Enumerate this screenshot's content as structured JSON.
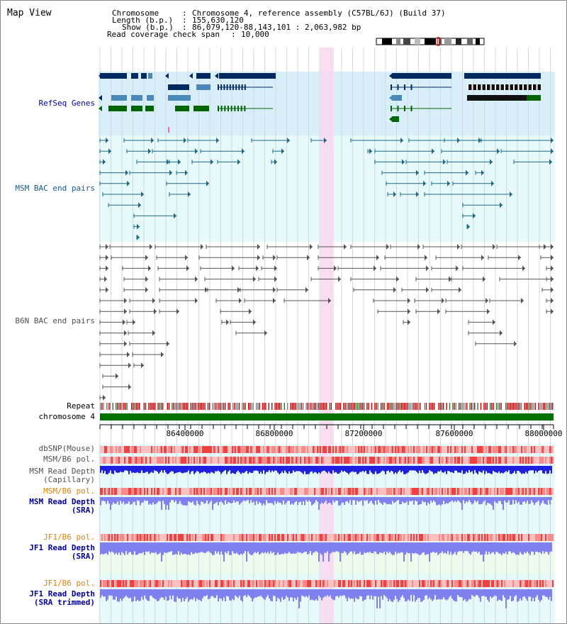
{
  "page": {
    "title": "Map View"
  },
  "info": {
    "chromosome_key": "Chromosome",
    "chromosome_val": "Chromosome 4, reference assembly (C57BL/6J) (Build 37)",
    "length_key": "Length (b.p.)",
    "length_val": "155,630,120",
    "show_key": "Show (b.p.)",
    "show_val": "86,079,120-88,143,101 : 2,063,982 bp",
    "coverage_key": "Read coverage check span",
    "coverage_val": "10,000"
  },
  "tracks": {
    "refseq": "RefSeq Genes",
    "msm_bac": "MSM BAC end pairs",
    "b6n_bac": "B6N BAC end pairs",
    "repeat": "Repeat",
    "chromosome": "chromosome 4",
    "dbsnp": "dbSNP(Mouse)",
    "msm_b6_pol_1": "MSM/B6 pol.",
    "msm_read_depth_cap": "MSM Read Depth\n(Capillary)",
    "msm_b6_pol_2": "MSM/B6 pol.",
    "msm_read_depth_sra": "MSM Read Depth\n(SRA)",
    "jf1_b6_pol_1": "JF1/B6 pol.",
    "jf1_read_depth_sra": "JF1 Read Depth\n(SRA)",
    "jf1_b6_pol_2": "JF1/B6 pol.",
    "jf1_read_depth_trim": "JF1 Read Depth\n(SRA trimmed)"
  },
  "axis": {
    "ticks": [
      "86400000",
      "86800000",
      "87200000",
      "87600000",
      "88000000"
    ]
  },
  "colors": {
    "refseq_bg": "#d8effa",
    "bac_bg": "#e6fafa",
    "highlight": "#f8d8f0",
    "chrom_green": "#007000",
    "gene_dark": "#002a60",
    "gene_mid": "#4a8ab8",
    "gene_green": "#006400",
    "bac_teal": "#1a6a8a",
    "bac_gray": "#555555",
    "depth_blue": "#2020e0",
    "depth_light": "#8080f0",
    "label_blue": "#00009c",
    "label_gray": "#505050",
    "label_orange": "#e08000"
  }
}
